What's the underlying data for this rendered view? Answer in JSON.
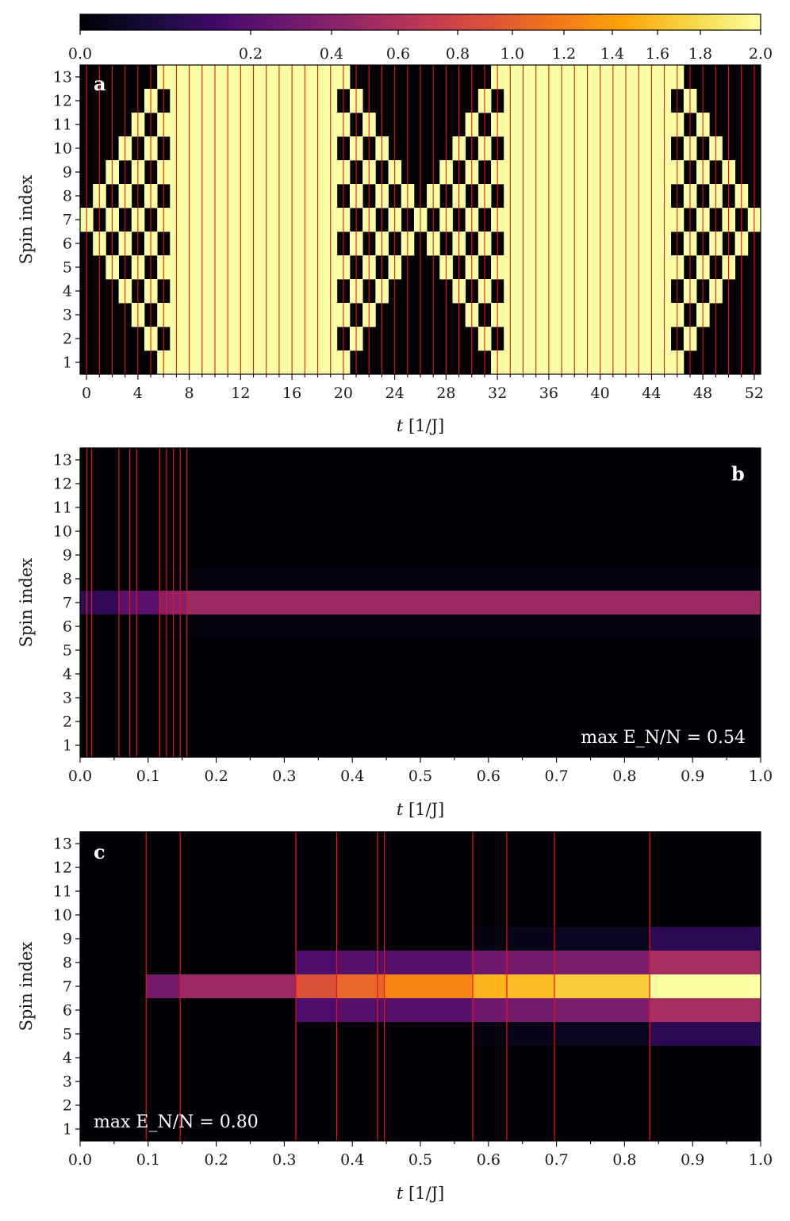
{
  "colorbar": {
    "colormap": "inferno",
    "ticks": [
      "0.0",
      "0.2",
      "0.4",
      "0.6",
      "0.8",
      "1.0",
      "1.2",
      "1.4",
      "1.6",
      "1.8",
      "2.0"
    ],
    "tick_values": [
      0.0,
      0.2,
      0.4,
      0.6,
      0.8,
      1.0,
      1.2,
      1.4,
      1.6,
      1.8,
      2.0
    ],
    "range": [
      0.0,
      2.0
    ],
    "scale": "stretched at low values (0 to 0.2 occupies ~23% of width)"
  },
  "colors": {
    "vline": "#e8141c",
    "background": "#000004",
    "bright": "#fcffa4"
  },
  "chart_data": [
    {
      "type": "heatmap",
      "panel_label": "a",
      "xlabel": "t [1/J]",
      "ylabel": "Spin index",
      "xlim": [
        -0.5,
        52.5
      ],
      "ylim": [
        0.5,
        13.5
      ],
      "xticks": [
        "0",
        "4",
        "8",
        "12",
        "16",
        "20",
        "24",
        "28",
        "32",
        "36",
        "40",
        "44",
        "48",
        "52"
      ],
      "xtick_values": [
        0,
        4,
        8,
        12,
        16,
        20,
        24,
        28,
        32,
        36,
        40,
        44,
        48,
        52
      ],
      "yticks": [
        "1",
        "2",
        "3",
        "4",
        "5",
        "6",
        "7",
        "8",
        "9",
        "10",
        "11",
        "12",
        "13"
      ],
      "time_step": 1,
      "pattern": "binary values 0.0 / 2.0; diamond checkerboard cones emanating from spin 7, spreading one site per time step; all-bright intervals t=7-19 and t=33-45",
      "cell_values": [
        0.0,
        2.0
      ],
      "vertical_lines_t": [
        0,
        1,
        2,
        3,
        4,
        5,
        6,
        7,
        8,
        9,
        10,
        11,
        12,
        13,
        14,
        15,
        16,
        17,
        18,
        19,
        20,
        21,
        22,
        23,
        24,
        25,
        26,
        27,
        28,
        29,
        30,
        31,
        32,
        33,
        34,
        35,
        36,
        37,
        38,
        39,
        40,
        41,
        42,
        43,
        44,
        45,
        46,
        47,
        48,
        49,
        50,
        51,
        52
      ],
      "grid": false
    },
    {
      "type": "heatmap",
      "panel_label": "b",
      "xlabel": "t [1/J]",
      "ylabel": "Spin index",
      "annotation": "max E_N/N = 0.54",
      "xlim": [
        0.0,
        1.0
      ],
      "ylim": [
        0.5,
        13.5
      ],
      "xticks": [
        "0.0",
        "0.1",
        "0.2",
        "0.3",
        "0.4",
        "0.5",
        "0.6",
        "0.7",
        "0.8",
        "0.9",
        "1.0"
      ],
      "yticks": [
        "1",
        "2",
        "3",
        "4",
        "5",
        "6",
        "7",
        "8",
        "9",
        "10",
        "11",
        "12",
        "13"
      ],
      "vertical_lines_t": [
        0.01,
        0.017,
        0.057,
        0.073,
        0.083,
        0.117,
        0.127,
        0.137,
        0.147,
        0.157
      ],
      "segments": [
        {
          "t_start": 0.0,
          "t_end": 0.057,
          "values": {
            "7": 0.13
          }
        },
        {
          "t_start": 0.057,
          "t_end": 0.117,
          "values": {
            "7": 0.22
          }
        },
        {
          "t_start": 0.117,
          "t_end": 0.157,
          "values": {
            "7": 0.4,
            "6": 0.01,
            "8": 0.01
          }
        },
        {
          "t_start": 0.157,
          "t_end": 1.0,
          "values": {
            "7": 0.5,
            "6": 0.015,
            "8": 0.015
          }
        }
      ],
      "grid": false
    },
    {
      "type": "heatmap",
      "panel_label": "c",
      "xlabel": "t [1/J]",
      "ylabel": "Spin index",
      "annotation": "max E_N/N = 0.80",
      "xlim": [
        0.0,
        1.0
      ],
      "ylim": [
        0.5,
        13.5
      ],
      "xticks": [
        "0.0",
        "0.1",
        "0.2",
        "0.3",
        "0.4",
        "0.5",
        "0.6",
        "0.7",
        "0.8",
        "0.9",
        "1.0"
      ],
      "yticks": [
        "1",
        "2",
        "3",
        "4",
        "5",
        "6",
        "7",
        "8",
        "9",
        "10",
        "11",
        "12",
        "13"
      ],
      "vertical_lines_t": [
        0.097,
        0.147,
        0.317,
        0.377,
        0.437,
        0.447,
        0.577,
        0.627,
        0.697,
        0.837
      ],
      "segments": [
        {
          "t_start": 0.097,
          "t_end": 0.147,
          "values": {
            "7": 0.32
          }
        },
        {
          "t_start": 0.147,
          "t_end": 0.317,
          "values": {
            "7": 0.5
          }
        },
        {
          "t_start": 0.317,
          "t_end": 0.377,
          "values": {
            "7": 0.9,
            "6": 0.18,
            "8": 0.18
          }
        },
        {
          "t_start": 0.377,
          "t_end": 0.447,
          "values": {
            "7": 1.05,
            "6": 0.2,
            "8": 0.2
          }
        },
        {
          "t_start": 0.447,
          "t_end": 0.577,
          "values": {
            "7": 1.25,
            "6": 0.2,
            "8": 0.2
          }
        },
        {
          "t_start": 0.577,
          "t_end": 0.627,
          "values": {
            "7": 1.55,
            "6": 0.3,
            "8": 0.3,
            "5": 0.02,
            "9": 0.02
          }
        },
        {
          "t_start": 0.627,
          "t_end": 0.697,
          "values": {
            "7": 1.6,
            "6": 0.32,
            "8": 0.32,
            "5": 0.03,
            "9": 0.03
          }
        },
        {
          "t_start": 0.697,
          "t_end": 0.837,
          "values": {
            "7": 1.7,
            "6": 0.35,
            "8": 0.35,
            "5": 0.04,
            "9": 0.04
          }
        },
        {
          "t_start": 0.837,
          "t_end": 1.0,
          "values": {
            "7": 2.0,
            "6": 0.55,
            "8": 0.55,
            "5": 0.12,
            "9": 0.12
          }
        }
      ],
      "grid": false
    }
  ],
  "labels": {
    "ylabel": "Spin index",
    "xlabel_t": "t",
    "xlabel_unit": " [1/J]",
    "panel_a": "a",
    "panel_b": "b",
    "panel_c": "c",
    "annot_b": "max E_N/N = 0.54",
    "annot_c": "max E_N/N = 0.80"
  }
}
